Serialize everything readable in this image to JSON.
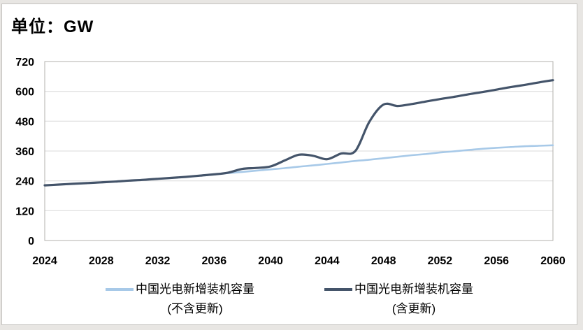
{
  "title": "单位：GW",
  "chart_data": {
    "type": "line",
    "title": "单位：GW",
    "ylabel": "GW",
    "xlim": [
      2024,
      2060
    ],
    "ylim": [
      0,
      720
    ],
    "ytick_step": 120,
    "y_ticks": [
      0,
      120,
      240,
      360,
      480,
      600,
      720
    ],
    "x_ticks": [
      2024,
      2028,
      2032,
      2036,
      2040,
      2044,
      2048,
      2052,
      2056,
      2060
    ],
    "grid": true,
    "legend_position": "bottom",
    "smoothed": true,
    "years": [
      2024,
      2025,
      2026,
      2027,
      2028,
      2029,
      2030,
      2031,
      2032,
      2033,
      2034,
      2035,
      2036,
      2037,
      2038,
      2039,
      2040,
      2041,
      2042,
      2043,
      2044,
      2045,
      2046,
      2047,
      2048,
      2049,
      2050,
      2051,
      2052,
      2053,
      2054,
      2055,
      2056,
      2057,
      2058,
      2059,
      2060
    ],
    "series": [
      {
        "name": "中国光电新增装机容量 (不含更新)",
        "legend_line1": "中国光电新增装机容量",
        "legend_line2": "(不含更新)",
        "color": "#a7c9e8",
        "stroke_width": 2.6,
        "values": [
          222,
          225,
          228,
          231,
          234,
          237,
          241,
          244,
          248,
          252,
          256,
          261,
          266,
          271,
          276,
          281,
          286,
          291,
          297,
          302,
          308,
          314,
          320,
          325,
          331,
          337,
          343,
          348,
          354,
          359,
          364,
          369,
          373,
          376,
          379,
          381,
          383
        ]
      },
      {
        "name": "中国光电新增装机容量 (含更新)",
        "legend_line1": "中国光电新增装机容量",
        "legend_line2": "(含更新)",
        "color": "#44546a",
        "stroke_width": 3.2,
        "values": [
          222,
          225,
          228,
          231,
          234,
          237,
          241,
          244,
          248,
          252,
          256,
          261,
          266,
          273,
          288,
          292,
          298,
          322,
          345,
          341,
          327,
          350,
          360,
          478,
          547,
          541,
          549,
          559,
          569,
          578,
          588,
          597,
          607,
          617,
          626,
          636,
          645
        ]
      }
    ],
    "colors": {
      "gridline": "#d9d9d9",
      "axis": "#b3b1ae",
      "label": "#000000",
      "card_background": "#ffffff",
      "page_background": "#e8e6e3"
    }
  }
}
